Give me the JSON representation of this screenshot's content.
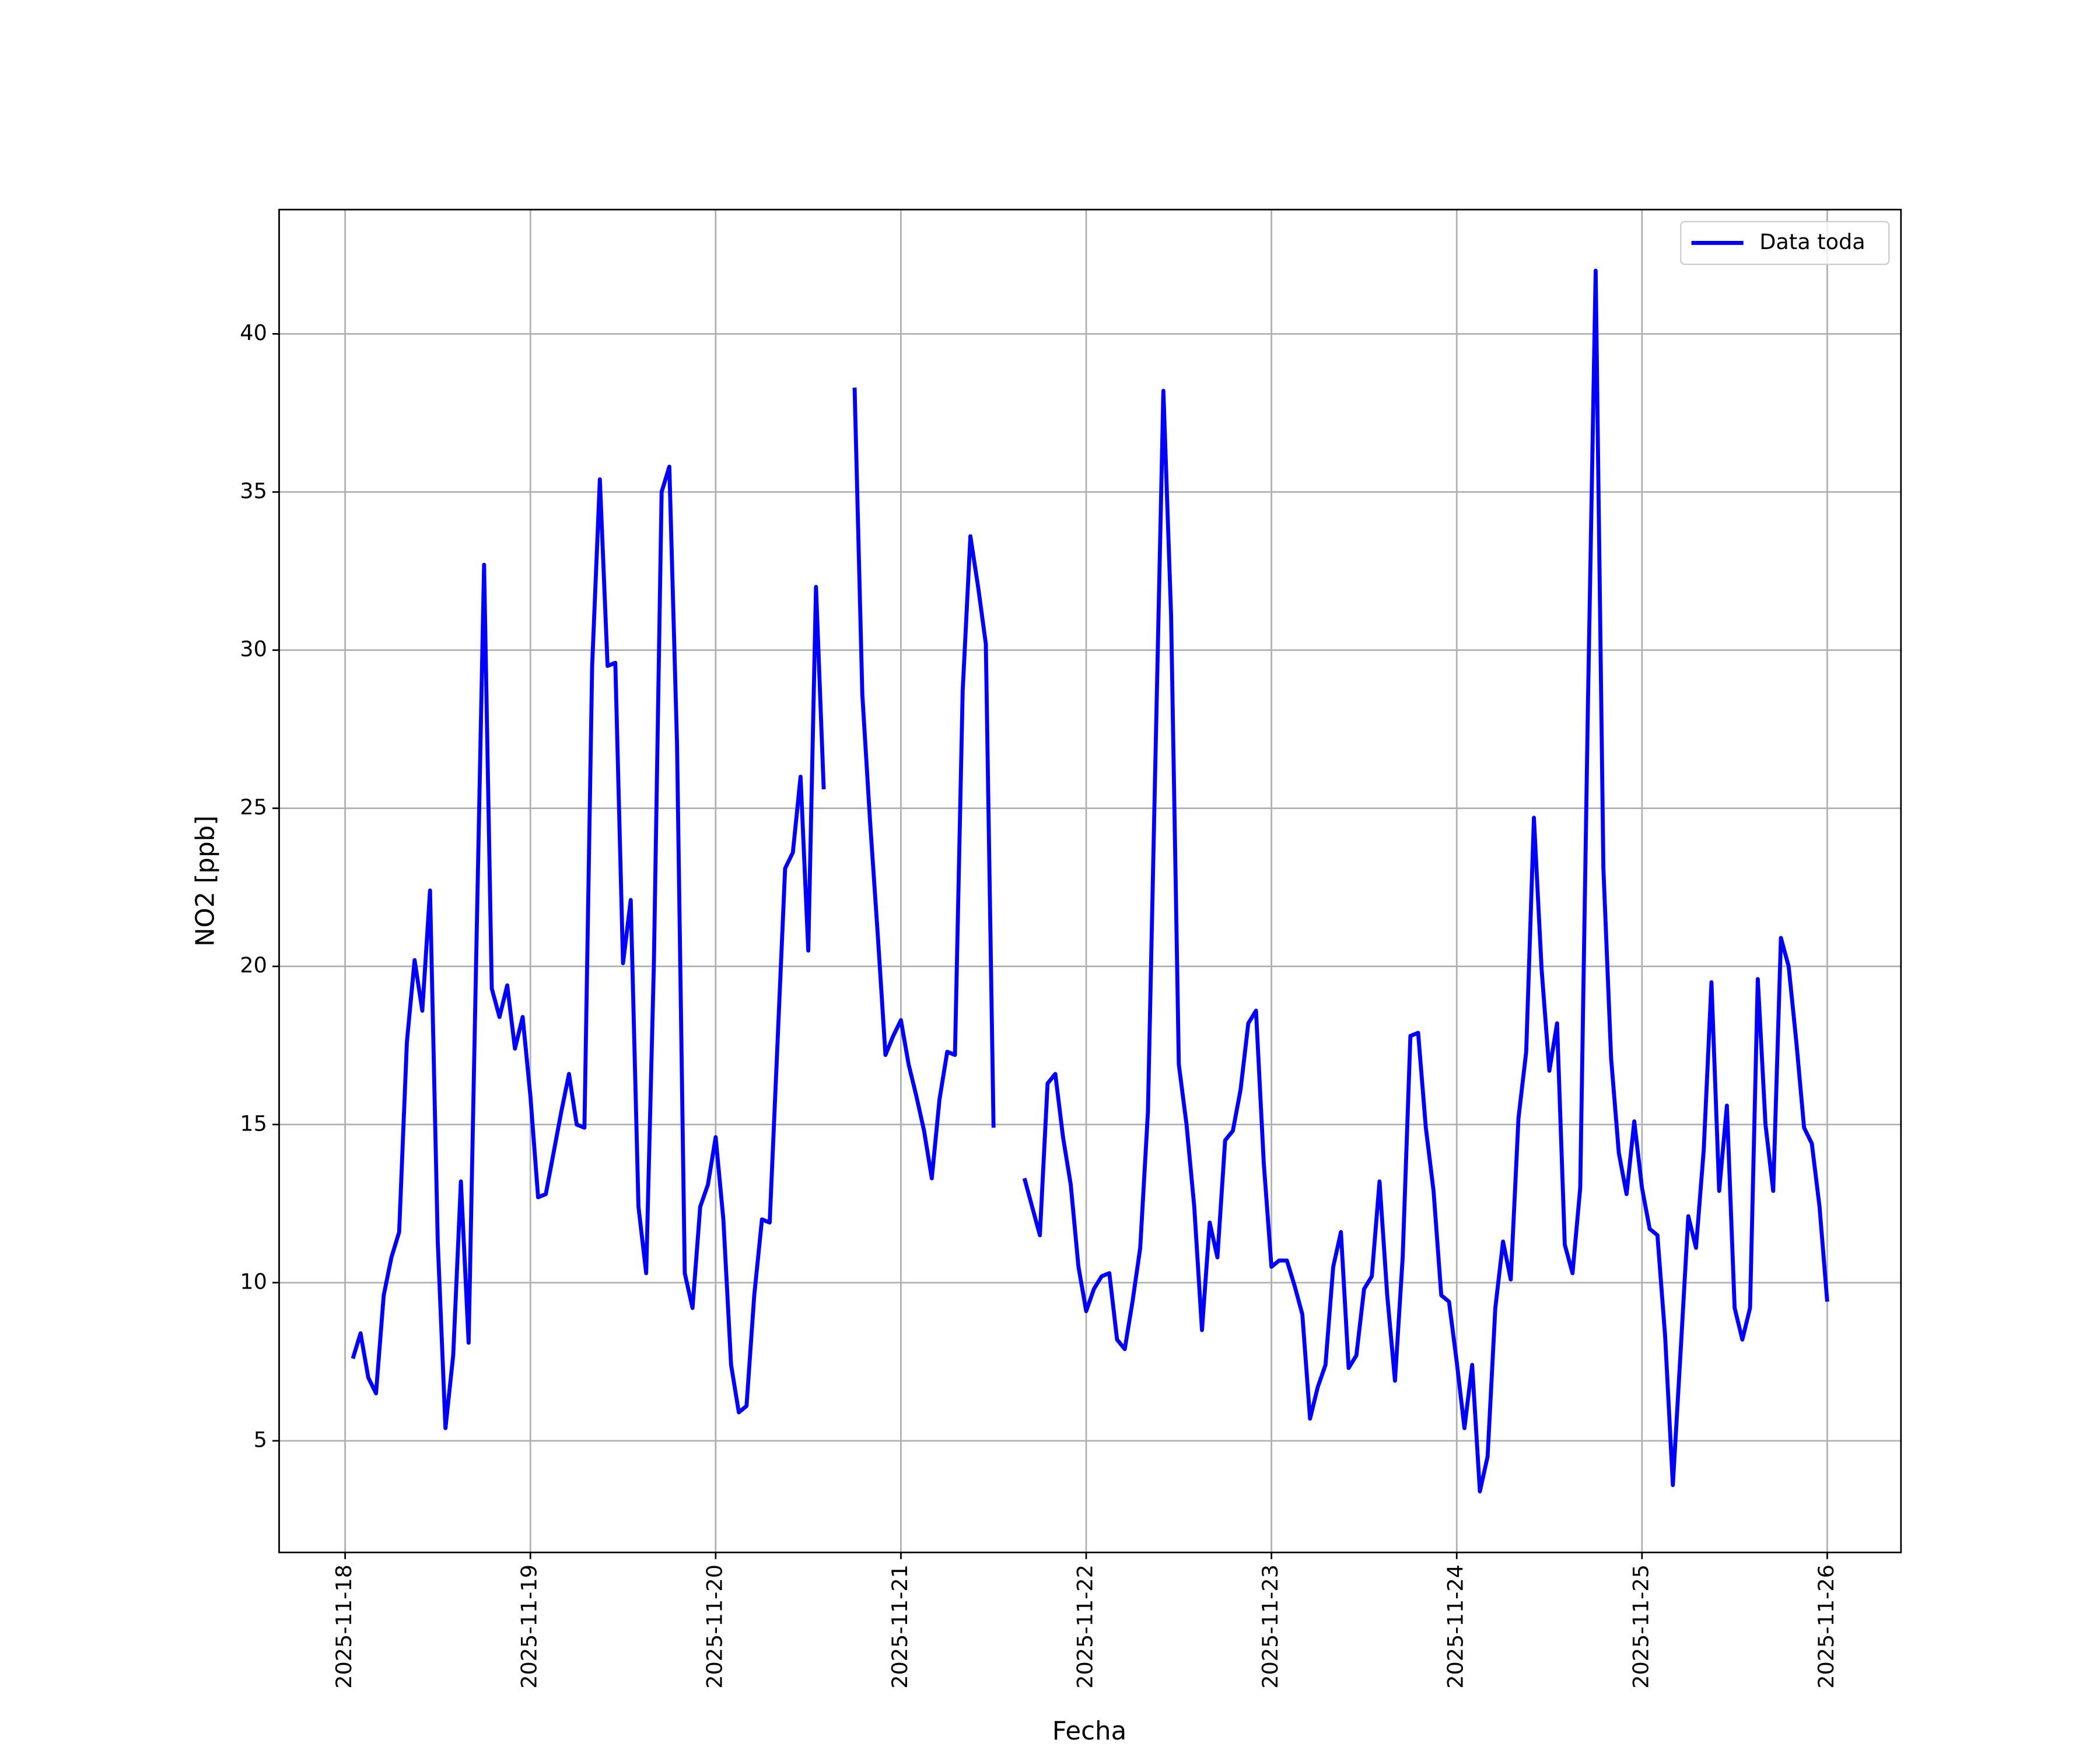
{
  "chart_data": {
    "type": "line",
    "xlabel": "Fecha",
    "ylabel": "NO2 [ppb]",
    "x": [
      "2025-11-18 01:00",
      "2025-11-18 02:00",
      "2025-11-18 03:00",
      "2025-11-18 04:00",
      "2025-11-18 05:00",
      "2025-11-18 06:00",
      "2025-11-18 07:00",
      "2025-11-18 08:00",
      "2025-11-18 09:00",
      "2025-11-18 10:00",
      "2025-11-18 11:00",
      "2025-11-18 12:00",
      "2025-11-18 13:00",
      "2025-11-18 14:00",
      "2025-11-18 15:00",
      "2025-11-18 16:00",
      "2025-11-18 17:00",
      "2025-11-18 18:00",
      "2025-11-18 19:00",
      "2025-11-18 20:00",
      "2025-11-18 21:00",
      "2025-11-18 22:00",
      "2025-11-18 23:00",
      "2025-11-19 00:00",
      "2025-11-19 01:00",
      "2025-11-19 02:00",
      "2025-11-19 03:00",
      "2025-11-19 04:00",
      "2025-11-19 05:00",
      "2025-11-19 06:00",
      "2025-11-19 07:00",
      "2025-11-19 08:00",
      "2025-11-19 09:00",
      "2025-11-19 10:00",
      "2025-11-19 11:00",
      "2025-11-19 12:00",
      "2025-11-19 13:00",
      "2025-11-19 14:00",
      "2025-11-19 15:00",
      "2025-11-19 16:00",
      "2025-11-19 17:00",
      "2025-11-19 18:00",
      "2025-11-19 19:00",
      "2025-11-19 20:00",
      "2025-11-19 21:00",
      "2025-11-19 22:00",
      "2025-11-19 23:00",
      "2025-11-20 00:00",
      "2025-11-20 01:00",
      "2025-11-20 02:00",
      "2025-11-20 03:00",
      "2025-11-20 04:00",
      "2025-11-20 05:00",
      "2025-11-20 06:00",
      "2025-11-20 07:00",
      "2025-11-20 08:00",
      "2025-11-20 09:00",
      "2025-11-20 10:00",
      "2025-11-20 11:00",
      "2025-11-20 12:00",
      "2025-11-20 13:00",
      "2025-11-20 14:00",
      "2025-11-20 15:00",
      "2025-11-20 16:00",
      "2025-11-20 17:00",
      "2025-11-20 18:00",
      "2025-11-20 19:00",
      "2025-11-20 20:00",
      "2025-11-20 21:00",
      "2025-11-20 22:00",
      "2025-11-20 23:00",
      "2025-11-21 00:00",
      "2025-11-21 01:00",
      "2025-11-21 02:00",
      "2025-11-21 03:00",
      "2025-11-21 04:00",
      "2025-11-21 05:00",
      "2025-11-21 06:00",
      "2025-11-21 07:00",
      "2025-11-21 08:00",
      "2025-11-21 09:00",
      "2025-11-21 10:00",
      "2025-11-21 11:00",
      "2025-11-21 12:00",
      "2025-11-21 13:00",
      "2025-11-21 14:00",
      "2025-11-21 15:00",
      "2025-11-21 16:00",
      "2025-11-21 17:00",
      "2025-11-21 18:00",
      "2025-11-21 19:00",
      "2025-11-21 20:00",
      "2025-11-21 21:00",
      "2025-11-21 22:00",
      "2025-11-21 23:00",
      "2025-11-22 00:00",
      "2025-11-22 01:00",
      "2025-11-22 02:00",
      "2025-11-22 03:00",
      "2025-11-22 04:00",
      "2025-11-22 05:00",
      "2025-11-22 06:00",
      "2025-11-22 07:00",
      "2025-11-22 08:00",
      "2025-11-22 09:00",
      "2025-11-22 10:00",
      "2025-11-22 11:00",
      "2025-11-22 12:00",
      "2025-11-22 13:00",
      "2025-11-22 14:00",
      "2025-11-22 15:00",
      "2025-11-22 16:00",
      "2025-11-22 17:00",
      "2025-11-22 18:00",
      "2025-11-22 19:00",
      "2025-11-22 20:00",
      "2025-11-22 21:00",
      "2025-11-22 22:00",
      "2025-11-22 23:00",
      "2025-11-23 00:00",
      "2025-11-23 01:00",
      "2025-11-23 02:00",
      "2025-11-23 03:00",
      "2025-11-23 04:00",
      "2025-11-23 05:00",
      "2025-11-23 06:00",
      "2025-11-23 07:00",
      "2025-11-23 08:00",
      "2025-11-23 09:00",
      "2025-11-23 10:00",
      "2025-11-23 11:00",
      "2025-11-23 12:00",
      "2025-11-23 13:00",
      "2025-11-23 14:00",
      "2025-11-23 15:00",
      "2025-11-23 16:00",
      "2025-11-23 17:00",
      "2025-11-23 18:00",
      "2025-11-23 19:00",
      "2025-11-23 20:00",
      "2025-11-23 21:00",
      "2025-11-23 22:00",
      "2025-11-23 23:00",
      "2025-11-24 00:00",
      "2025-11-24 01:00",
      "2025-11-24 02:00",
      "2025-11-24 03:00",
      "2025-11-24 04:00",
      "2025-11-24 05:00",
      "2025-11-24 06:00",
      "2025-11-24 07:00",
      "2025-11-24 08:00",
      "2025-11-24 09:00",
      "2025-11-24 10:00",
      "2025-11-24 11:00",
      "2025-11-24 12:00",
      "2025-11-24 13:00",
      "2025-11-24 14:00",
      "2025-11-24 15:00",
      "2025-11-24 16:00",
      "2025-11-24 17:00",
      "2025-11-24 18:00",
      "2025-11-24 19:00",
      "2025-11-24 20:00",
      "2025-11-24 21:00",
      "2025-11-24 22:00",
      "2025-11-24 23:00",
      "2025-11-25 00:00",
      "2025-11-25 01:00",
      "2025-11-25 02:00",
      "2025-11-25 03:00",
      "2025-11-25 04:00",
      "2025-11-25 05:00",
      "2025-11-25 06:00",
      "2025-11-25 07:00",
      "2025-11-25 08:00",
      "2025-11-25 09:00",
      "2025-11-25 10:00",
      "2025-11-25 11:00",
      "2025-11-25 12:00",
      "2025-11-25 13:00",
      "2025-11-25 14:00",
      "2025-11-25 15:00",
      "2025-11-25 16:00",
      "2025-11-25 17:00",
      "2025-11-25 18:00",
      "2025-11-25 19:00",
      "2025-11-25 20:00",
      "2025-11-25 21:00",
      "2025-11-25 22:00",
      "2025-11-25 23:00",
      "2025-11-26 00:00"
    ],
    "series": [
      {
        "name": "Data toda",
        "color": "#0000ff",
        "values": [
          7.6,
          8.4,
          7.0,
          6.5,
          9.6,
          10.8,
          11.6,
          17.6,
          20.2,
          18.6,
          22.4,
          11.3,
          5.4,
          7.7,
          13.2,
          8.1,
          20.5,
          32.7,
          19.3,
          18.4,
          19.4,
          17.4,
          18.4,
          15.9,
          12.7,
          12.8,
          14.1,
          15.4,
          16.6,
          15.0,
          14.9,
          29.5,
          35.4,
          29.5,
          29.6,
          20.1,
          22.1,
          12.4,
          10.3,
          20.1,
          35.0,
          35.8,
          27.0,
          10.3,
          9.2,
          12.4,
          13.1,
          14.6,
          12.0,
          7.4,
          5.9,
          6.1,
          9.6,
          12.0,
          11.9,
          17.5,
          23.1,
          23.6,
          26.0,
          20.5,
          32.0,
          25.6,
          null,
          null,
          null,
          38.3,
          28.6,
          24.6,
          21.0,
          17.2,
          17.8,
          18.3,
          16.9,
          15.9,
          14.8,
          13.3,
          15.8,
          17.3,
          17.2,
          28.7,
          33.6,
          32.0,
          30.2,
          14.9,
          null,
          null,
          null,
          13.3,
          12.4,
          11.5,
          16.3,
          16.6,
          14.6,
          13.1,
          10.5,
          9.1,
          9.8,
          10.2,
          10.3,
          8.2,
          7.9,
          9.4,
          11.1,
          15.4,
          26.9,
          38.2,
          31.1,
          16.9,
          15.0,
          12.4,
          8.5,
          11.9,
          10.8,
          14.5,
          14.8,
          16.1,
          18.2,
          18.6,
          13.8,
          10.5,
          10.7,
          10.7,
          9.9,
          9.0,
          5.7,
          6.7,
          7.4,
          10.5,
          11.6,
          7.3,
          7.7,
          9.8,
          10.2,
          13.2,
          9.6,
          6.9,
          10.8,
          17.8,
          17.9,
          14.9,
          12.9,
          9.6,
          9.4,
          7.5,
          5.4,
          7.4,
          3.4,
          4.5,
          9.2,
          11.3,
          10.1,
          15.2,
          17.3,
          24.7,
          19.9,
          16.7,
          18.2,
          11.2,
          10.3,
          13.0,
          28.3,
          42.0,
          23.1,
          17.1,
          14.1,
          12.8,
          15.1,
          13.0,
          11.7,
          11.5,
          8.3,
          3.6,
          7.8,
          12.1,
          11.1,
          14.2,
          19.5,
          12.9,
          15.6,
          9.2,
          8.2,
          9.2,
          19.6,
          15.0,
          12.9,
          20.9,
          20.0,
          17.6,
          14.9,
          14.4,
          12.4,
          9.4
        ]
      }
    ],
    "xlim": [
      "2025-11-17 15:27",
      "2025-11-26 09:33"
    ],
    "xticks": [
      "2025-11-18",
      "2025-11-19",
      "2025-11-20",
      "2025-11-21",
      "2025-11-22",
      "2025-11-23",
      "2025-11-24",
      "2025-11-25",
      "2025-11-26"
    ],
    "ylim": [
      1.47,
      43.93
    ],
    "yticks": [
      5,
      10,
      15,
      20,
      25,
      30,
      35,
      40
    ],
    "grid": true,
    "legend": "upper right"
  }
}
